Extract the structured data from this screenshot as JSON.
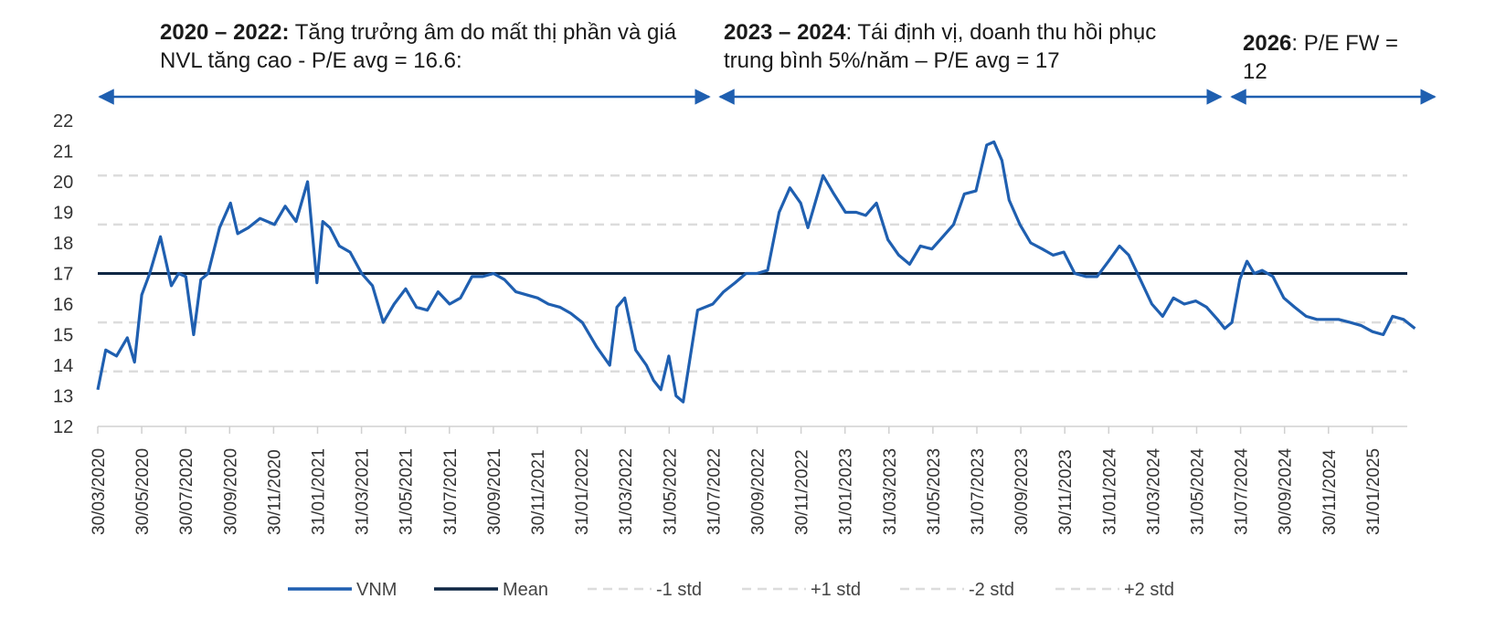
{
  "annotations": [
    {
      "bold": "2020 – 2022:",
      "text": " Tăng trưởng âm do mất thị phần và giá NVL tăng cao - P/E avg = 16.6:"
    },
    {
      "bold": "2023 – 2024",
      "text": ": Tái định vị, doanh thu hồi phục trung bình 5%/năm – P/E avg = 17"
    },
    {
      "bold": "2026",
      "text": ": P/E FW = 12"
    }
  ],
  "colors": {
    "vnm": "#1f5fb0",
    "mean": "#0f2744",
    "std": "#dcdcdc",
    "arrow": "#1f5fb0"
  },
  "chart_data": {
    "type": "line",
    "title": "",
    "xlabel": "",
    "ylabel": "",
    "ylim": [
      12,
      22
    ],
    "y_ticks": [
      "22",
      "21",
      "20",
      "19",
      "18",
      "17",
      "16",
      "15",
      "14",
      "13",
      "12"
    ],
    "x_ticks": [
      "30/03/2020",
      "30/05/2020",
      "30/07/2020",
      "30/09/2020",
      "30/11/2020",
      "31/01/2021",
      "31/03/2021",
      "31/05/2021",
      "31/07/2021",
      "30/09/2021",
      "30/11/2021",
      "31/01/2022",
      "31/03/2022",
      "31/05/2022",
      "31/07/2022",
      "30/09/2022",
      "30/11/2022",
      "31/01/2023",
      "31/03/2023",
      "31/05/2023",
      "31/07/2023",
      "30/09/2023",
      "30/11/2023",
      "31/01/2024",
      "31/03/2024",
      "31/05/2024",
      "31/07/2024",
      "30/09/2024",
      "30/11/2024",
      "31/01/2025"
    ],
    "grid": false,
    "legend_position": "bottom",
    "legend": [
      "VNM",
      "Mean",
      "-1 std",
      "+1 std",
      "-2 std",
      "+2 std"
    ],
    "horizontal_lines": [
      {
        "name": "Mean",
        "value": 17.0
      },
      {
        "name": "+1 std",
        "value": 18.6
      },
      {
        "name": "-1 std",
        "value": 15.4
      },
      {
        "name": "+2 std",
        "value": 20.2
      },
      {
        "name": "-2 std",
        "value": 13.8
      }
    ],
    "series": [
      {
        "name": "VNM",
        "points": [
          [
            "30/03/2020",
            13.2
          ],
          [
            "10/04/2020",
            14.5
          ],
          [
            "25/04/2020",
            14.3
          ],
          [
            "10/05/2020",
            14.9
          ],
          [
            "20/05/2020",
            14.1
          ],
          [
            "30/05/2020",
            16.3
          ],
          [
            "10/06/2020",
            17.0
          ],
          [
            "25/06/2020",
            18.2
          ],
          [
            "10/07/2020",
            16.6
          ],
          [
            "20/07/2020",
            17.0
          ],
          [
            "30/07/2020",
            16.9
          ],
          [
            "10/08/2020",
            15.0
          ],
          [
            "20/08/2020",
            16.8
          ],
          [
            "30/08/2020",
            17.0
          ],
          [
            "15/09/2020",
            18.5
          ],
          [
            "30/09/2020",
            19.3
          ],
          [
            "10/10/2020",
            18.3
          ],
          [
            "25/10/2020",
            18.5
          ],
          [
            "10/11/2020",
            18.8
          ],
          [
            "30/11/2020",
            18.6
          ],
          [
            "15/12/2020",
            19.2
          ],
          [
            "30/12/2020",
            18.7
          ],
          [
            "15/01/2021",
            20.0
          ],
          [
            "28/01/2021",
            16.7
          ],
          [
            "05/02/2021",
            18.7
          ],
          [
            "15/02/2021",
            18.5
          ],
          [
            "28/02/2021",
            17.9
          ],
          [
            "15/03/2021",
            17.7
          ],
          [
            "31/03/2021",
            17.0
          ],
          [
            "15/04/2021",
            16.6
          ],
          [
            "30/04/2021",
            15.4
          ],
          [
            "15/05/2021",
            16.0
          ],
          [
            "31/05/2021",
            16.5
          ],
          [
            "15/06/2021",
            15.9
          ],
          [
            "30/06/2021",
            15.8
          ],
          [
            "15/07/2021",
            16.4
          ],
          [
            "31/07/2021",
            16.0
          ],
          [
            "15/08/2021",
            16.2
          ],
          [
            "31/08/2021",
            16.9
          ],
          [
            "15/09/2021",
            16.9
          ],
          [
            "30/09/2021",
            17.0
          ],
          [
            "15/10/2021",
            16.8
          ],
          [
            "31/10/2021",
            16.4
          ],
          [
            "15/11/2021",
            16.3
          ],
          [
            "30/11/2021",
            16.2
          ],
          [
            "15/12/2021",
            16.0
          ],
          [
            "31/12/2021",
            15.9
          ],
          [
            "15/01/2022",
            15.7
          ],
          [
            "31/01/2022",
            15.4
          ],
          [
            "20/02/2022",
            14.6
          ],
          [
            "10/03/2022",
            14.0
          ],
          [
            "20/03/2022",
            15.9
          ],
          [
            "31/03/2022",
            16.2
          ],
          [
            "15/04/2022",
            14.5
          ],
          [
            "30/04/2022",
            14.0
          ],
          [
            "10/05/2022",
            13.5
          ],
          [
            "20/05/2022",
            13.2
          ],
          [
            "31/05/2022",
            14.3
          ],
          [
            "10/06/2022",
            13.0
          ],
          [
            "20/06/2022",
            12.8
          ],
          [
            "30/06/2022",
            14.3
          ],
          [
            "10/07/2022",
            15.8
          ],
          [
            "31/07/2022",
            16.0
          ],
          [
            "15/08/2022",
            16.4
          ],
          [
            "31/08/2022",
            16.7
          ],
          [
            "15/09/2022",
            17.0
          ],
          [
            "30/09/2022",
            17.0
          ],
          [
            "15/10/2022",
            17.1
          ],
          [
            "31/10/2022",
            19.0
          ],
          [
            "15/11/2022",
            19.8
          ],
          [
            "30/11/2022",
            19.3
          ],
          [
            "10/12/2022",
            18.5
          ],
          [
            "31/12/2022",
            20.2
          ],
          [
            "15/01/2023",
            19.6
          ],
          [
            "31/01/2023",
            19.0
          ],
          [
            "15/02/2023",
            19.0
          ],
          [
            "28/02/2023",
            18.9
          ],
          [
            "15/03/2023",
            19.3
          ],
          [
            "31/03/2023",
            18.1
          ],
          [
            "15/04/2023",
            17.6
          ],
          [
            "30/04/2023",
            17.3
          ],
          [
            "15/05/2023",
            17.9
          ],
          [
            "31/05/2023",
            17.8
          ],
          [
            "15/06/2023",
            18.2
          ],
          [
            "30/06/2023",
            18.6
          ],
          [
            "15/07/2023",
            19.6
          ],
          [
            "31/07/2023",
            19.7
          ],
          [
            "15/08/2023",
            21.2
          ],
          [
            "25/08/2023",
            21.3
          ],
          [
            "05/09/2023",
            20.7
          ],
          [
            "15/09/2023",
            19.4
          ],
          [
            "30/09/2023",
            18.6
          ],
          [
            "15/10/2023",
            18.0
          ],
          [
            "31/10/2023",
            17.8
          ],
          [
            "15/11/2023",
            17.6
          ],
          [
            "30/11/2023",
            17.7
          ],
          [
            "15/12/2023",
            17.0
          ],
          [
            "31/12/2023",
            16.9
          ],
          [
            "15/01/2024",
            16.9
          ],
          [
            "31/01/2024",
            17.4
          ],
          [
            "15/02/2024",
            17.9
          ],
          [
            "28/02/2024",
            17.6
          ],
          [
            "15/03/2024",
            16.8
          ],
          [
            "31/03/2024",
            16.0
          ],
          [
            "15/04/2024",
            15.6
          ],
          [
            "30/04/2024",
            16.2
          ],
          [
            "15/05/2024",
            16.0
          ],
          [
            "31/05/2024",
            16.1
          ],
          [
            "15/06/2024",
            15.9
          ],
          [
            "30/06/2024",
            15.5
          ],
          [
            "10/07/2024",
            15.2
          ],
          [
            "20/07/2024",
            15.4
          ],
          [
            "31/07/2024",
            16.8
          ],
          [
            "10/08/2024",
            17.4
          ],
          [
            "20/08/2024",
            17.0
          ],
          [
            "31/08/2024",
            17.1
          ],
          [
            "15/09/2024",
            16.9
          ],
          [
            "30/09/2024",
            16.2
          ],
          [
            "15/10/2024",
            15.9
          ],
          [
            "31/10/2024",
            15.6
          ],
          [
            "15/11/2024",
            15.5
          ],
          [
            "30/11/2024",
            15.5
          ],
          [
            "15/12/2024",
            15.5
          ],
          [
            "31/12/2024",
            15.4
          ],
          [
            "15/01/2025",
            15.3
          ],
          [
            "31/01/2025",
            15.1
          ],
          [
            "15/02/2025",
            15.0
          ],
          [
            "28/02/2025",
            15.6
          ],
          [
            "15/03/2025",
            15.5
          ],
          [
            "31/03/2025",
            15.2
          ]
        ]
      }
    ]
  }
}
